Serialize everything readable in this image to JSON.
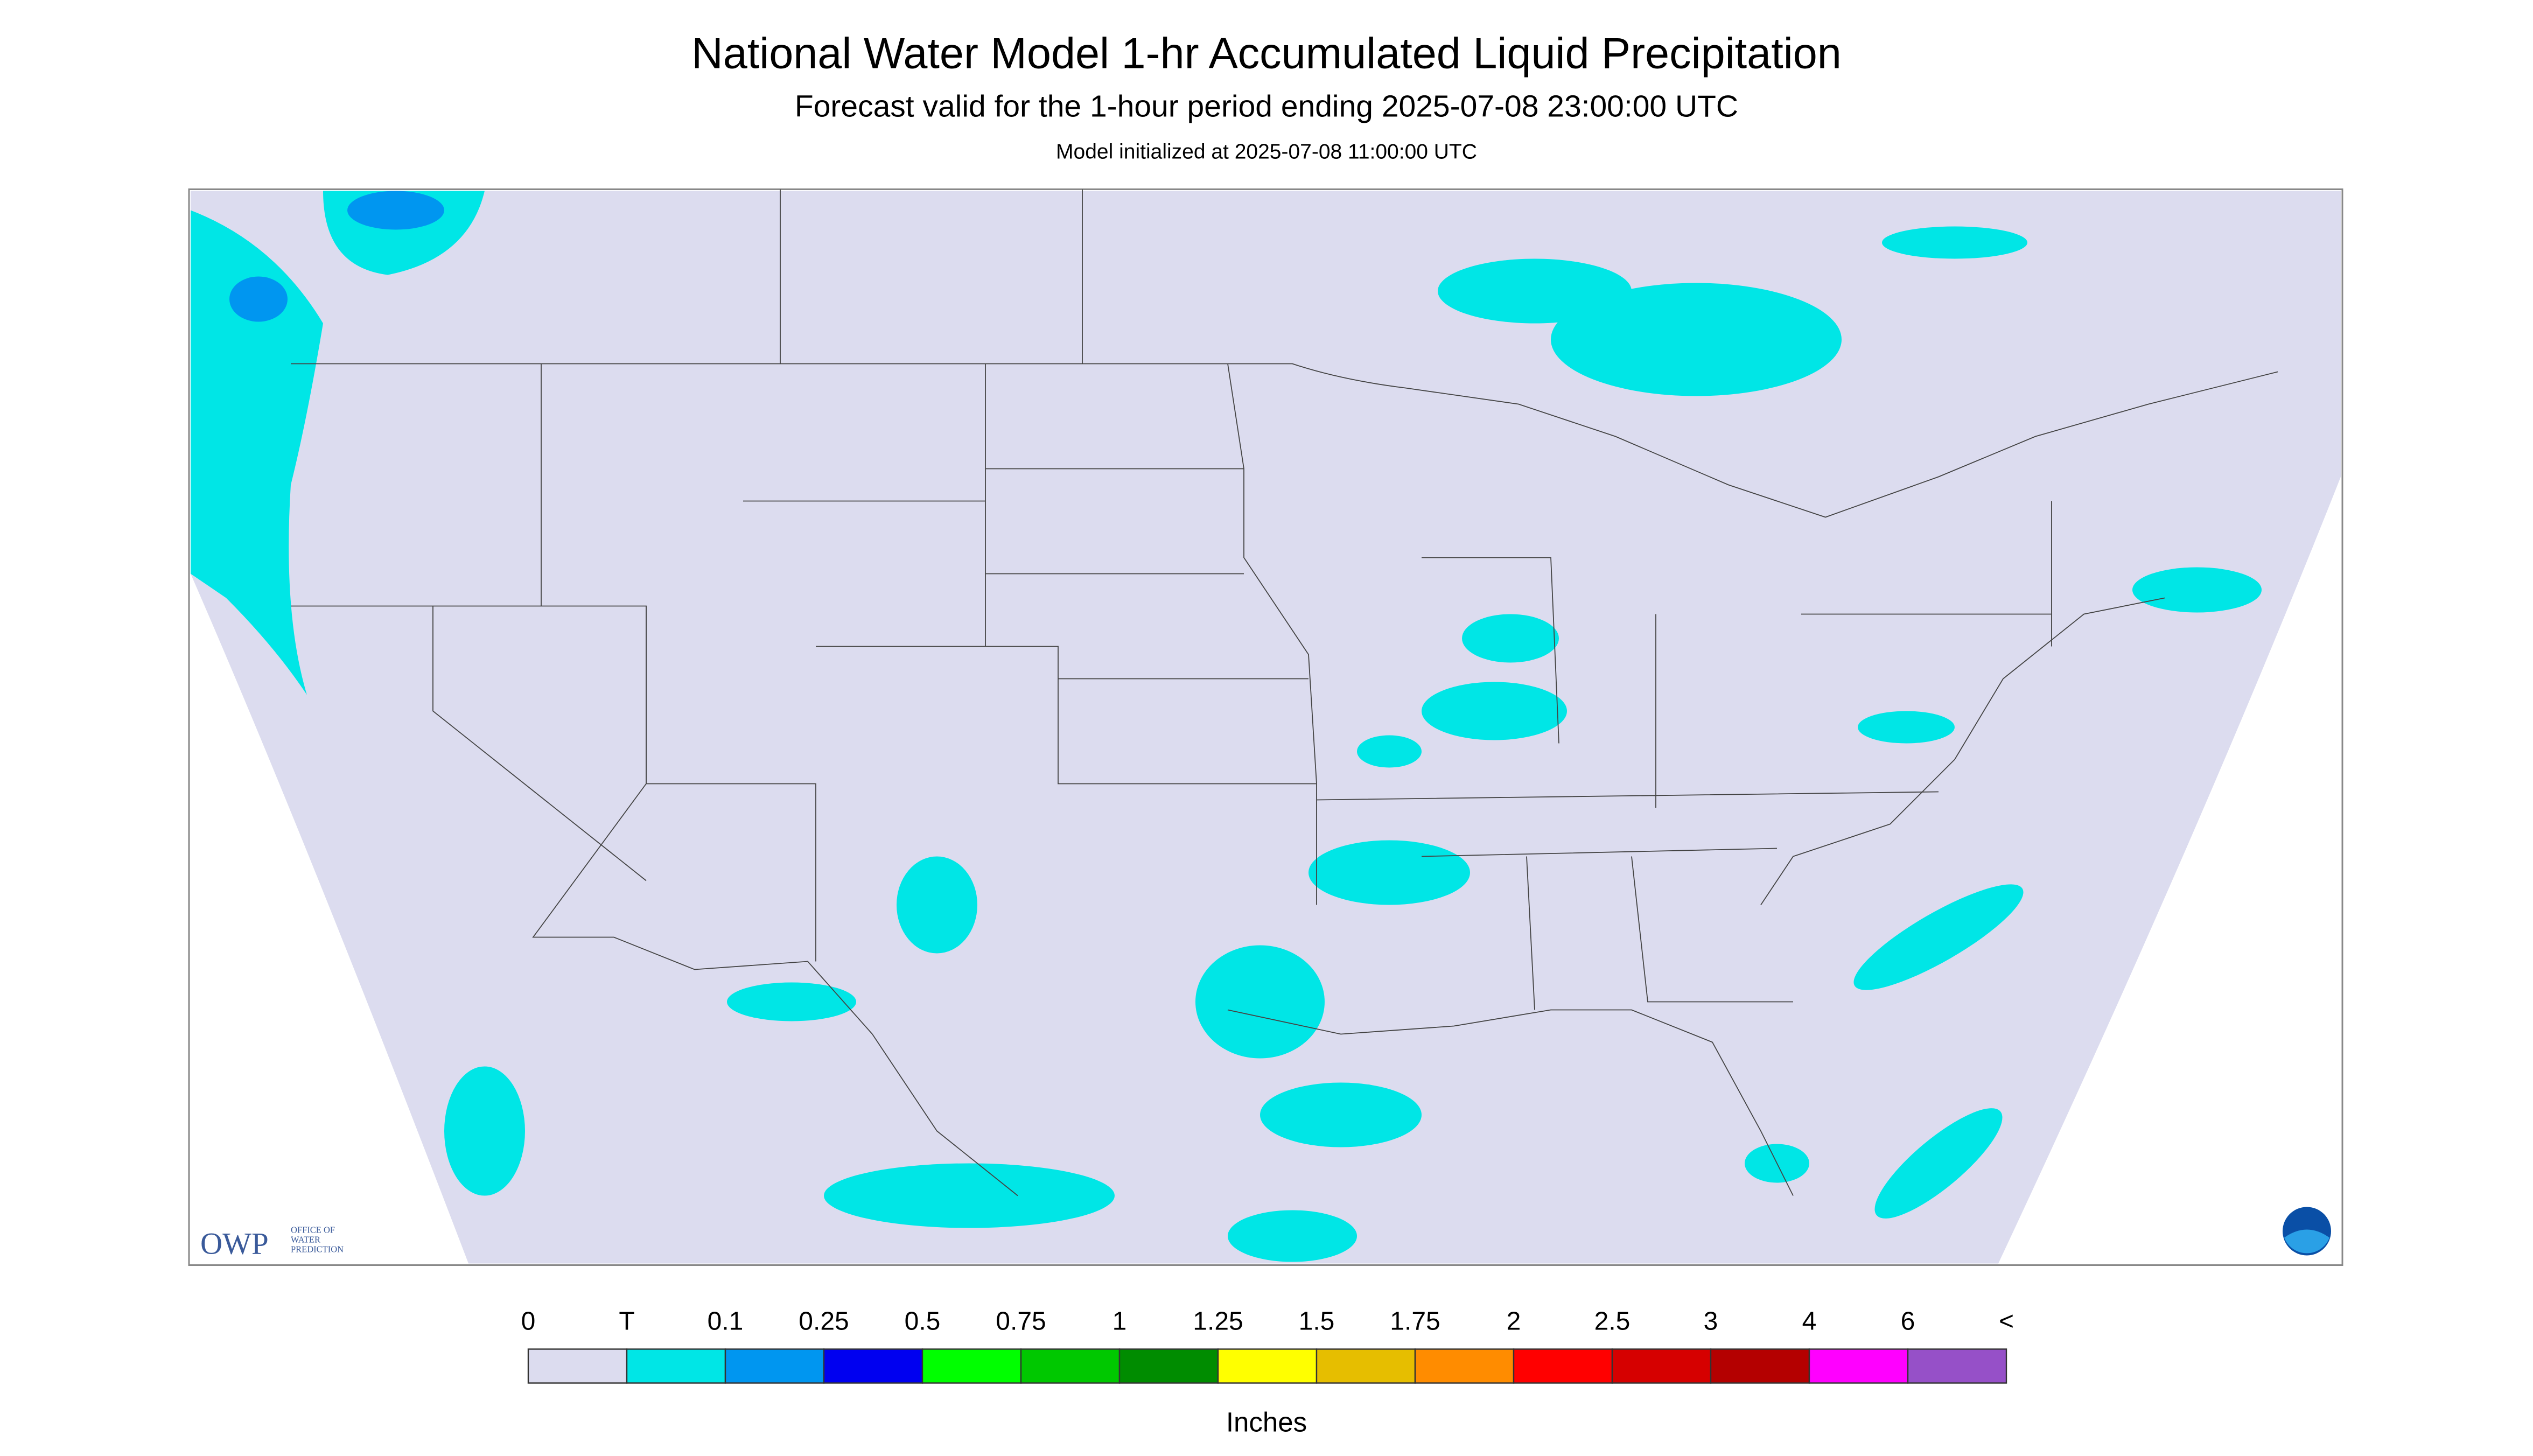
{
  "header": {
    "title": "National Water Model 1-hr Accumulated Liquid Precipitation",
    "subtitle": "Forecast valid for the 1-hour period ending 2025-07-08 23:00:00 UTC",
    "note": "Model initialized at 2025-07-08 11:00:00 UTC"
  },
  "logo": {
    "name": "OWP",
    "lines": [
      "OFFICE OF",
      "WATER",
      "PREDICTION"
    ]
  },
  "legend": {
    "labels": [
      "0",
      "T",
      "0.1",
      "0.25",
      "0.5",
      "0.75",
      "1",
      "1.25",
      "1.5",
      "1.75",
      "2",
      "2.5",
      "3",
      "4",
      "6",
      "<"
    ],
    "colors": [
      "#dcdcef",
      "#00e6e6",
      "#0096f0",
      "#0000f0",
      "#00ff00",
      "#00c800",
      "#008c00",
      "#ffff00",
      "#e6be00",
      "#ff8c00",
      "#ff0000",
      "#d60000",
      "#b40000",
      "#ff00ff",
      "#9650c8"
    ],
    "units": "Inches"
  }
}
